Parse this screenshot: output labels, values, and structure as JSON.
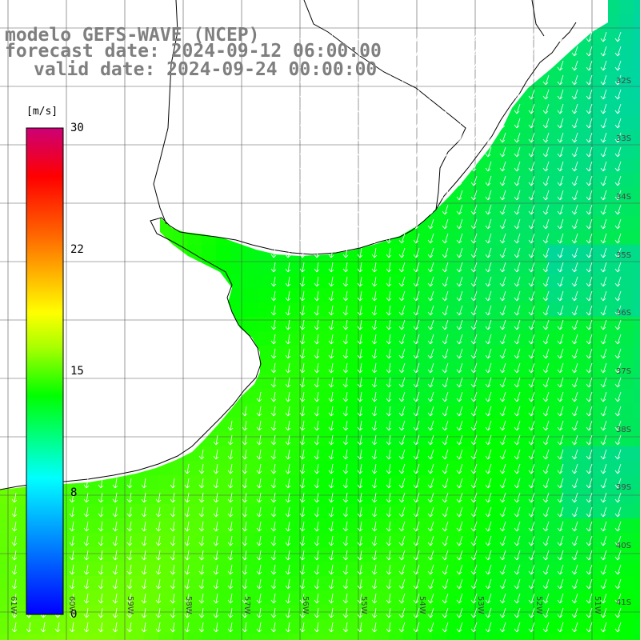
{
  "title": {
    "model": "modelo GEFS-WAVE (NCEP)",
    "forecast": "forecast date: 2024-09-12 06:00:00",
    "valid": "valid date: 2024-09-24 00:00:00"
  },
  "colorbar": {
    "unit": "[m/s]",
    "ticks": [
      "30",
      "22",
      "15",
      "8",
      "0"
    ],
    "colors": [
      "#0000ff",
      "#00aaff",
      "#00ffff",
      "#00ff00",
      "#ffff00",
      "#ff6600",
      "#ff0000",
      "#cc0066"
    ]
  },
  "lat_labels": [
    "32S",
    "33S",
    "34S",
    "35S",
    "36S",
    "37S",
    "38S",
    "39S",
    "40S",
    "41S"
  ],
  "lon_labels": [
    "61W",
    "60W",
    "59W",
    "58W",
    "57W",
    "56W",
    "55W",
    "54W",
    "53W",
    "52W",
    "51W"
  ],
  "wind_field": {
    "variable": "wind speed",
    "unit": "m/s",
    "direction": "from NNE/N toward SSW/S (vectors pointing southward)",
    "range_shown": "approximately 7–13 m/s",
    "region": "Rio de la Plata estuary and adjacent South Atlantic, Uruguay / Buenos Aires coast"
  }
}
